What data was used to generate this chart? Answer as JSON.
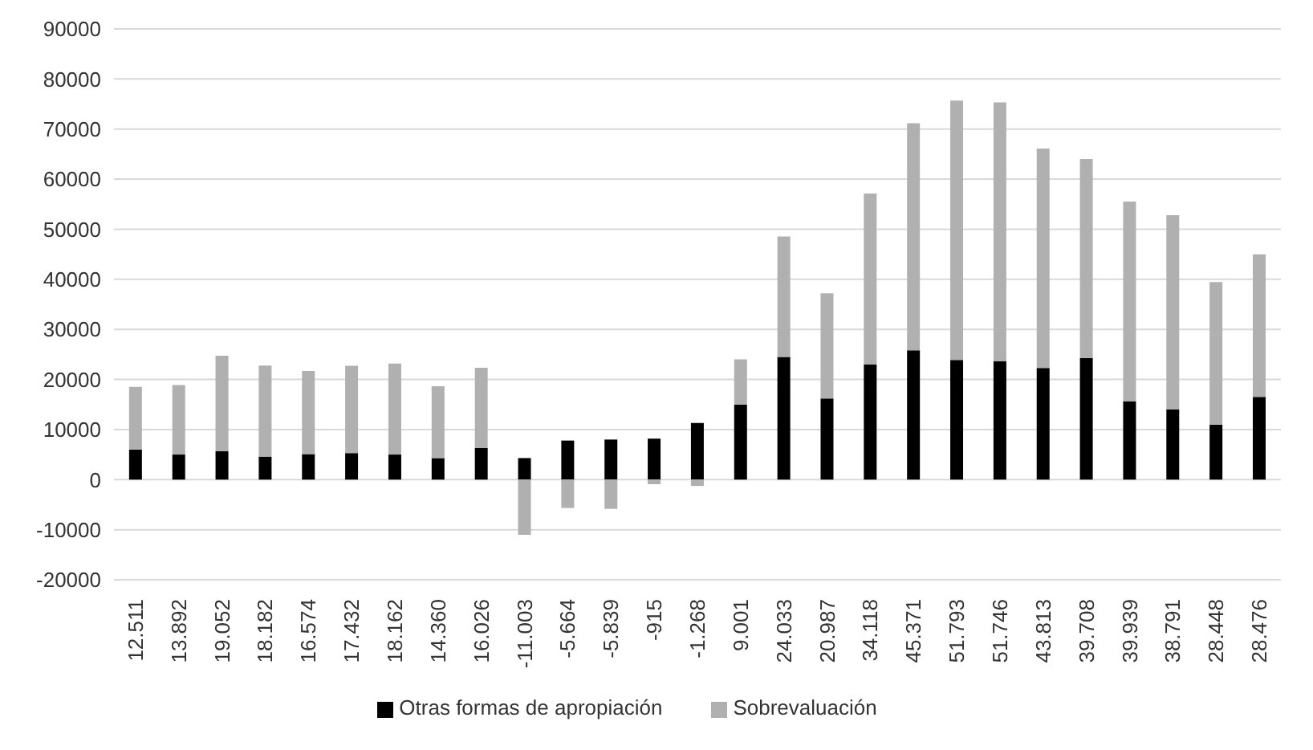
{
  "chart_data": {
    "type": "bar",
    "stacked": true,
    "categories": [
      "12.511",
      "13.892",
      "19.052",
      "18.182",
      "16.574",
      "17.432",
      "18.162",
      "14.360",
      "16.026",
      "-11.003",
      "-5.664",
      "-5.839",
      "-915",
      "-1.268",
      "9.001",
      "24.033",
      "20.987",
      "34.118",
      "45.371",
      "51.793",
      "51.746",
      "43.813",
      "39.708",
      "39.939",
      "38.791",
      "28.448",
      "28.476"
    ],
    "series": [
      {
        "name": "Otras formas de apropiación",
        "color": "#000000",
        "values": [
          6000,
          5000,
          5700,
          4600,
          5100,
          5300,
          5000,
          4300,
          6300,
          4300,
          7800,
          8000,
          8200,
          11300,
          15000,
          24500,
          16200,
          23000,
          25800,
          23900,
          23600,
          22300,
          24300,
          15600,
          14000,
          11000,
          16500
        ]
      },
      {
        "name": "Sobrevaluación",
        "color": "#b0b0b0",
        "values": [
          12511,
          13892,
          19052,
          18182,
          16574,
          17432,
          18162,
          14360,
          16026,
          -11003,
          -5664,
          -5839,
          -915,
          -1268,
          9001,
          24033,
          20987,
          34118,
          45371,
          51793,
          51746,
          43813,
          39708,
          39939,
          38791,
          28448,
          28476
        ]
      }
    ],
    "ylim": [
      -20000,
      90000
    ],
    "yticks": [
      -20000,
      -10000,
      0,
      10000,
      20000,
      30000,
      40000,
      50000,
      60000,
      70000,
      80000,
      90000
    ],
    "grid": "y",
    "legend": "bottom"
  }
}
